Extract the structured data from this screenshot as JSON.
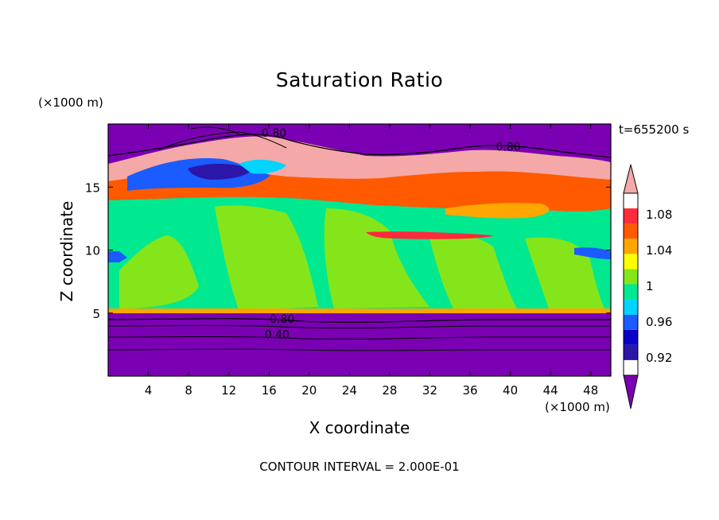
{
  "chart_data": {
    "type": "heatmap",
    "title": "Saturation Ratio",
    "xlabel": "X coordinate",
    "ylabel": "Z coordinate",
    "x_unit": "(×1000 m)",
    "y_unit": "(×1000 m)",
    "xlim": [
      0,
      50
    ],
    "ylim": [
      0,
      20
    ],
    "x_ticks": [
      4,
      8,
      12,
      16,
      20,
      24,
      28,
      32,
      36,
      40,
      44,
      48
    ],
    "y_ticks": [
      5,
      10,
      15
    ],
    "time_label": "t=655200 s",
    "footer": "CONTOUR INTERVAL = 2.000E-01",
    "colorbar": {
      "levels": [
        0.92,
        0.96,
        1,
        1.04,
        1.08
      ],
      "colors": [
        "#7b00b3",
        "#2b16a8",
        "#0a00c8",
        "#1a5cff",
        "#00d4ff",
        "#00e890",
        "#84e61a",
        "#ffff00",
        "#ffa600",
        "#ff5a00",
        "#ff2a3a",
        "#f4a8a8"
      ]
    },
    "contour_labels": [
      {
        "text": "0.80",
        "x": 16.5,
        "y": 19.3
      },
      {
        "text": "0.80",
        "x": 39.8,
        "y": 18.2
      },
      {
        "text": "0.80",
        "x": 17.3,
        "y": 4.55
      },
      {
        "text": "0.40",
        "x": 16.8,
        "y": 3.3
      }
    ]
  }
}
